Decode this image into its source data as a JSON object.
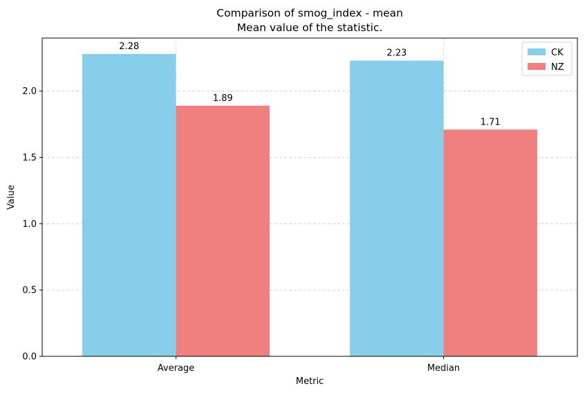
{
  "chart_data": {
    "type": "bar",
    "title": "Comparison of smog_index - mean",
    "subtitle": "Mean value of the statistic.",
    "xlabel": "Metric",
    "ylabel": "Value",
    "categories": [
      "Average",
      "Median"
    ],
    "series": [
      {
        "name": "CK",
        "values": [
          2.28,
          2.23
        ],
        "color": "#87ceeb"
      },
      {
        "name": "NZ",
        "values": [
          1.89,
          1.71
        ],
        "color": "#f08080"
      }
    ],
    "ylim": [
      0,
      2.4
    ],
    "yticks": [
      0.0,
      0.5,
      1.0,
      1.5,
      2.0
    ],
    "ytick_labels": [
      "0.0",
      "0.5",
      "1.0",
      "1.5",
      "2.0"
    ],
    "value_labels": [
      [
        "2.28",
        "2.23"
      ],
      [
        "1.89",
        "1.71"
      ]
    ],
    "grid": true,
    "legend_position": "top-right"
  }
}
